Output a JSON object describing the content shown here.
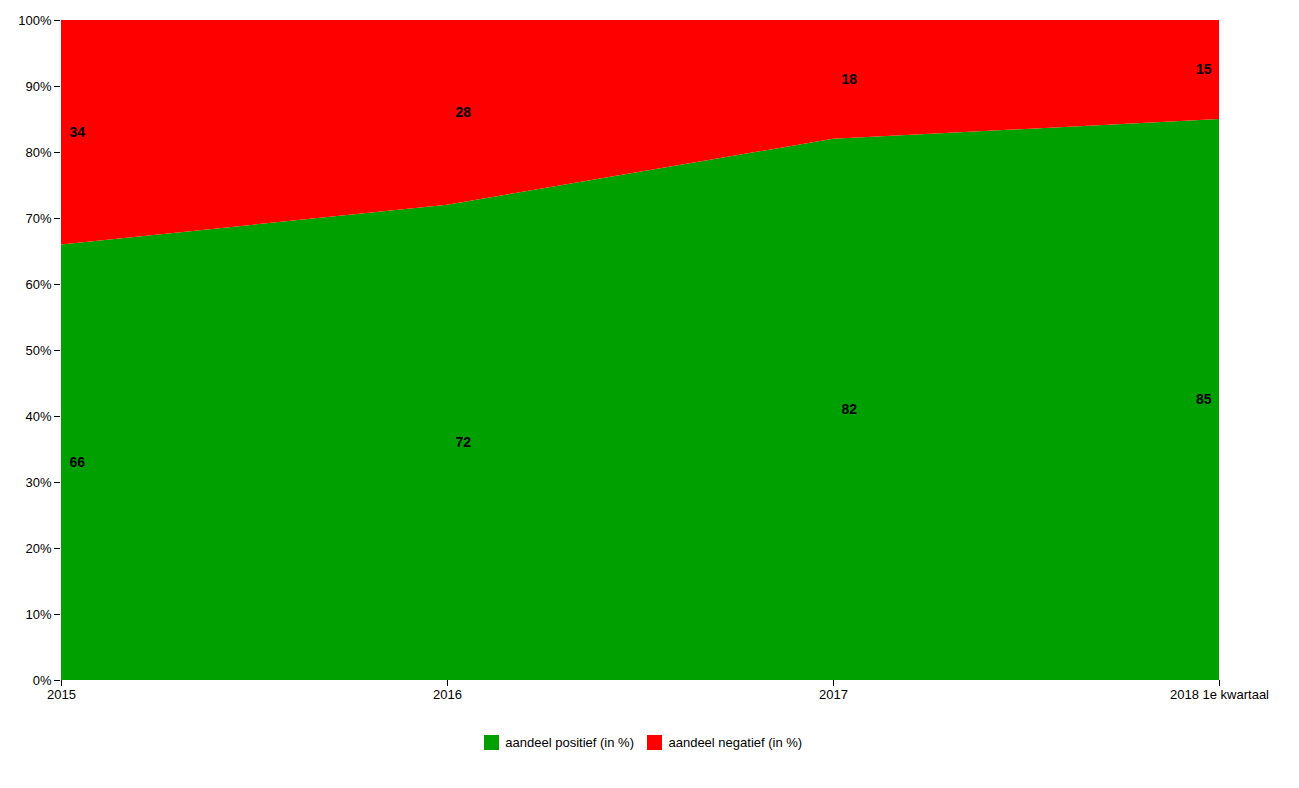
{
  "chart_data": {
    "type": "area",
    "stacked": true,
    "categories": [
      "2015",
      "2016",
      "2017",
      "2018 1e kwartaal"
    ],
    "series": [
      {
        "name": "aandeel positief (in %)",
        "color": "#00A000",
        "values": [
          66,
          72,
          82,
          85
        ]
      },
      {
        "name": "aandeel negatief (in %)",
        "color": "#FF0000",
        "values": [
          34,
          28,
          18,
          15
        ]
      }
    ],
    "ylim": [
      0,
      100
    ],
    "yticks": [
      {
        "value": 0,
        "label": "0%"
      },
      {
        "value": 10,
        "label": "10%"
      },
      {
        "value": 20,
        "label": "20%"
      },
      {
        "value": 30,
        "label": "30%"
      },
      {
        "value": 40,
        "label": "40%"
      },
      {
        "value": 50,
        "label": "50%"
      },
      {
        "value": 60,
        "label": "60%"
      },
      {
        "value": 70,
        "label": "70%"
      },
      {
        "value": 80,
        "label": "80%"
      },
      {
        "value": 90,
        "label": "90%"
      },
      {
        "value": 100,
        "label": "100%"
      }
    ],
    "data_labels": true,
    "legend": "bottom"
  }
}
